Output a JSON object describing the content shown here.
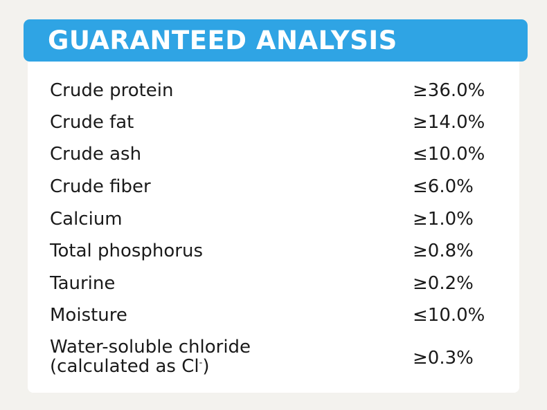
{
  "header": {
    "title": "GUARANTEED ANALYSIS"
  },
  "analysis": [
    {
      "nutrient": "Crude protein",
      "value": "≥36.0%"
    },
    {
      "nutrient": "Crude fat",
      "value": "≥14.0%"
    },
    {
      "nutrient": "Crude ash",
      "value": "≤10.0%"
    },
    {
      "nutrient": "Crude fiber",
      "value": "≤6.0%"
    },
    {
      "nutrient": "Calcium",
      "value": "≥1.0%"
    },
    {
      "nutrient": "Total phosphorus",
      "value": "≥0.8%"
    },
    {
      "nutrient": "Taurine",
      "value": "≥0.2%"
    },
    {
      "nutrient": "Moisture",
      "value": "≤10.0%"
    }
  ],
  "last_row": {
    "nutrient_line1": "Water-soluble chloride",
    "nutrient_line2": "(calculated as Cl",
    "nutrient_sup": "-",
    "nutrient_line2_end": ")",
    "value": "≥0.3%"
  },
  "colors": {
    "header_bg": "#2fa4e4",
    "page_bg": "#f3f2ee",
    "card_bg": "#ffffff",
    "text": "#1a1a1a"
  }
}
